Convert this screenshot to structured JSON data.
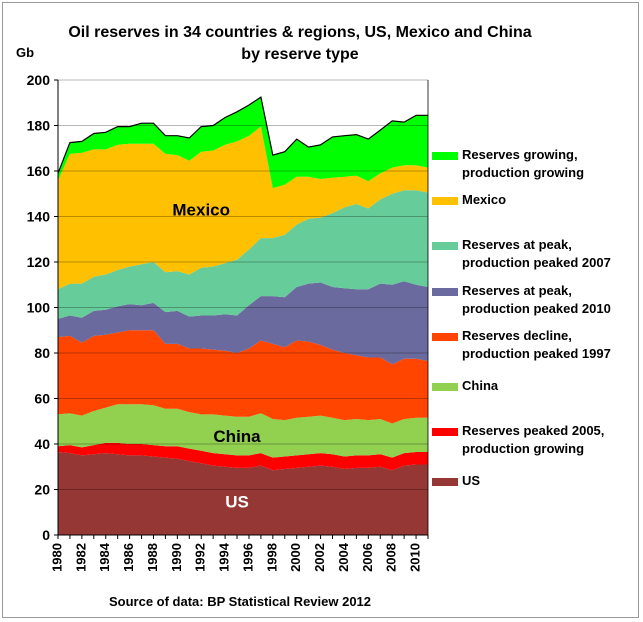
{
  "title": {
    "line1": "Oil reserves in 34 countries & regions, US, Mexico and China",
    "line2": "by reserve type"
  },
  "unit_label": "Gb",
  "source": "Source  of data: BP Statistical Review 2012",
  "chart_data": {
    "type": "area",
    "stacked": true,
    "title": "Oil reserves in 34 countries & regions, US, Mexico and China by reserve type",
    "ylabel": "Gb",
    "xlabel": "",
    "ylim": [
      0,
      200
    ],
    "yticks": [
      0,
      20,
      40,
      60,
      80,
      100,
      120,
      140,
      160,
      180,
      200
    ],
    "xticks": [
      1980,
      1982,
      1984,
      1986,
      1988,
      1990,
      1992,
      1994,
      1996,
      1998,
      2000,
      2002,
      2004,
      2006,
      2008,
      2010
    ],
    "grid": "horizontal",
    "legend_position": "right",
    "x": [
      1980,
      1981,
      1982,
      1983,
      1984,
      1985,
      1986,
      1987,
      1988,
      1989,
      1990,
      1991,
      1992,
      1993,
      1994,
      1995,
      1996,
      1997,
      1998,
      1999,
      2000,
      2001,
      2002,
      2003,
      2004,
      2005,
      2006,
      2007,
      2008,
      2009,
      2010,
      2011
    ],
    "series": [
      {
        "name": "US",
        "color": "#953735",
        "label": "US",
        "values": [
          36.5,
          36.0,
          35.0,
          35.5,
          36.0,
          35.5,
          35.0,
          35.0,
          34.5,
          34.0,
          33.5,
          32.5,
          31.5,
          30.5,
          30.0,
          29.5,
          29.5,
          30.5,
          28.5,
          29.0,
          29.5,
          30.0,
          30.5,
          30.0,
          29.0,
          29.5,
          29.5,
          30.0,
          28.5,
          30.5,
          31.0,
          31.0
        ]
      },
      {
        "name": "Reserves peaked 2005, production growing",
        "color": "#ff0000",
        "values": [
          2.5,
          3.5,
          3.5,
          4.0,
          4.5,
          5.0,
          5.0,
          5.0,
          5.0,
          5.0,
          5.5,
          5.5,
          5.5,
          5.5,
          5.5,
          5.5,
          5.5,
          5.5,
          5.5,
          5.5,
          5.5,
          5.5,
          5.5,
          5.5,
          5.5,
          5.5,
          5.5,
          5.5,
          5.5,
          5.5,
          5.5,
          5.5
        ]
      },
      {
        "name": "China",
        "color": "#92d050",
        "label": "China",
        "values": [
          14.0,
          14.0,
          14.0,
          15.0,
          15.5,
          17.0,
          17.5,
          17.5,
          17.5,
          16.5,
          16.5,
          16.0,
          16.0,
          17.0,
          17.0,
          17.0,
          17.0,
          17.5,
          17.0,
          16.0,
          16.5,
          16.5,
          16.5,
          16.0,
          16.0,
          16.0,
          15.5,
          15.5,
          15.0,
          15.0,
          15.0,
          15.0
        ]
      },
      {
        "name": "Reserves decline, production peaked 1997",
        "color": "#ff4500",
        "values": [
          34.0,
          34.0,
          32.0,
          33.0,
          32.0,
          31.5,
          32.5,
          32.5,
          33.0,
          28.5,
          28.5,
          28.0,
          29.0,
          28.5,
          28.5,
          28.0,
          30.0,
          32.0,
          33.0,
          32.0,
          34.0,
          33.0,
          31.0,
          30.0,
          29.5,
          28.0,
          27.5,
          27.0,
          26.0,
          26.5,
          26.0,
          25.0
        ]
      },
      {
        "name": "Reserves at peak, production peaked 2010",
        "color": "#6a6a9e",
        "values": [
          8.0,
          9.0,
          11.0,
          11.0,
          11.0,
          11.5,
          11.5,
          11.0,
          12.0,
          14.0,
          14.5,
          14.0,
          14.5,
          15.0,
          16.0,
          16.5,
          19.0,
          19.5,
          21.0,
          22.0,
          23.5,
          25.5,
          27.5,
          27.5,
          28.5,
          29.0,
          30.0,
          32.5,
          35.0,
          34.0,
          32.5,
          32.5
        ]
      },
      {
        "name": "Reserves at peak, production peaked 2007",
        "color": "#66cc99",
        "values": [
          13.0,
          14.0,
          15.0,
          15.0,
          15.5,
          16.0,
          16.5,
          18.0,
          18.0,
          17.5,
          17.5,
          18.5,
          21.0,
          21.5,
          22.5,
          24.5,
          24.5,
          25.5,
          25.5,
          27.5,
          27.5,
          28.5,
          28.5,
          32.5,
          35.5,
          37.5,
          35.5,
          37.0,
          40.0,
          40.0,
          41.5,
          41.5
        ]
      },
      {
        "name": "Mexico",
        "color": "#ffc000",
        "label": "Mexico",
        "values": [
          48.0,
          57.0,
          57.5,
          56.0,
          55.0,
          55.0,
          54.0,
          53.0,
          52.0,
          52.0,
          51.0,
          50.0,
          51.0,
          51.0,
          52.0,
          52.0,
          50.0,
          49.0,
          22.0,
          22.0,
          21.0,
          18.5,
          17.0,
          15.5,
          13.5,
          12.5,
          12.0,
          11.5,
          11.5,
          11.0,
          11.0,
          11.0
        ]
      },
      {
        "name": "Reserves growing, production growing",
        "color": "#00ff00",
        "values": [
          3.0,
          5.0,
          5.0,
          7.0,
          7.5,
          8.0,
          7.5,
          9.0,
          9.0,
          8.0,
          8.5,
          10.0,
          11.0,
          11.0,
          12.0,
          13.0,
          13.5,
          13.0,
          14.5,
          14.5,
          16.5,
          13.0,
          15.0,
          18.0,
          18.0,
          18.0,
          18.5,
          19.0,
          20.5,
          19.0,
          22.0,
          23.0
        ]
      }
    ],
    "area_labels": {
      "mexico": "Mexico",
      "china": "China",
      "us": "US"
    }
  },
  "legend": [
    {
      "lines": [
        "Reserves growing,",
        "production growing"
      ],
      "color": "#00ff00"
    },
    {
      "lines": [
        "Mexico"
      ],
      "color": "#ffc000"
    },
    {
      "lines": [
        "Reserves at peak,",
        "production peaked 2007"
      ],
      "color": "#66cc99"
    },
    {
      "lines": [
        "Reserves at peak,",
        "production peaked 2010"
      ],
      "color": "#6a6a9e"
    },
    {
      "lines": [
        "Reserves decline,",
        "production peaked 1997"
      ],
      "color": "#ff4500"
    },
    {
      "lines": [
        "China"
      ],
      "color": "#92d050"
    },
    {
      "lines": [
        "Reserves peaked 2005,",
        "production growing"
      ],
      "color": "#ff0000"
    },
    {
      "lines": [
        "US"
      ],
      "color": "#953735"
    }
  ]
}
